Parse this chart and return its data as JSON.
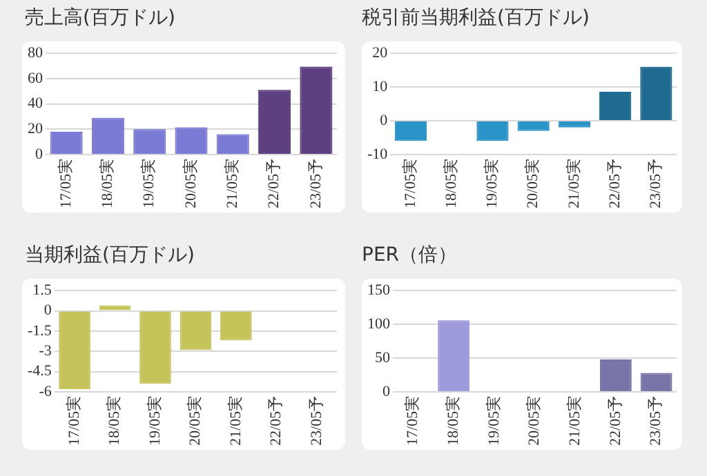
{
  "chart_data": [
    {
      "type": "bar",
      "title": "売上高(百万ドル)",
      "categories": [
        "17/05実",
        "18/05実",
        "19/05実",
        "20/05実",
        "21/05実",
        "22/05予",
        "23/05予"
      ],
      "values": [
        18,
        29,
        20,
        21.5,
        16,
        51,
        69.5
      ],
      "colors": [
        "#7b7bd6",
        "#7b7bd6",
        "#7b7bd6",
        "#7b7bd6",
        "#7b7bd6",
        "#5e3f7f",
        "#5e3f7f"
      ],
      "ylim": [
        0,
        80
      ],
      "yticks": [
        0,
        20,
        40,
        60,
        80
      ],
      "grid": "y"
    },
    {
      "type": "bar",
      "title": "税引前当期利益(百万ドル)",
      "categories": [
        "17/05実",
        "18/05実",
        "19/05実",
        "20/05実",
        "21/05実",
        "22/05予",
        "23/05予"
      ],
      "values": [
        -6,
        null,
        -6,
        -3,
        -2,
        8.6,
        16
      ],
      "colors": [
        "#2a93c8",
        "#2a93c8",
        "#2a93c8",
        "#2a93c8",
        "#2a93c8",
        "#1f6a90",
        "#1f6a90"
      ],
      "ylim": [
        -10,
        20
      ],
      "yticks": [
        -10,
        0,
        10,
        20
      ],
      "grid": "y"
    },
    {
      "type": "bar",
      "title": "当期利益(百万ドル)",
      "categories": [
        "17/05実",
        "18/05実",
        "19/05実",
        "20/05実",
        "21/05実",
        "22/05予",
        "23/05予"
      ],
      "values": [
        -5.8,
        0.4,
        -5.4,
        -2.9,
        -2.2,
        null,
        null
      ],
      "colors": [
        "#c4c45a",
        "#c4c45a",
        "#c4c45a",
        "#c4c45a",
        "#c4c45a",
        "#c4c45a",
        "#c4c45a"
      ],
      "ylim": [
        -6,
        1.5
      ],
      "yticks": [
        -6,
        -4.5,
        -3,
        -1.5,
        0,
        1.5
      ],
      "grid": "y"
    },
    {
      "type": "bar",
      "title": "PER（倍）",
      "categories": [
        "17/05実",
        "18/05実",
        "19/05実",
        "20/05実",
        "21/05実",
        "22/05予",
        "23/05予"
      ],
      "values": [
        null,
        106,
        null,
        null,
        null,
        48,
        28
      ],
      "colors": [
        "#9d9bdc",
        "#9d9bdc",
        "#9d9bdc",
        "#9d9bdc",
        "#9d9bdc",
        "#7a75a8",
        "#7a75a8"
      ],
      "ylim": [
        0,
        150
      ],
      "yticks": [
        0,
        50,
        100,
        150
      ],
      "grid": "y"
    }
  ]
}
